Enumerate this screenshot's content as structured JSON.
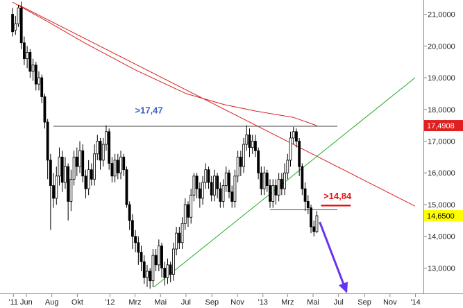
{
  "chart_data": {
    "type": "candlestick",
    "title": "",
    "xlabel": "",
    "ylabel": "",
    "ylim": [
      12.2,
      21.45
    ],
    "grid": false,
    "x_ticks": [
      {
        "label": "'11",
        "date": "2011-05-15"
      },
      {
        "label": "Jun",
        "date": "2011-06-15"
      },
      {
        "label": "Aug",
        "date": "2011-08-15"
      },
      {
        "label": "Okt",
        "date": "2011-10-15"
      },
      {
        "label": "'12",
        "date": "2012-01-01"
      },
      {
        "label": "Mrz",
        "date": "2012-03-01"
      },
      {
        "label": "Mai",
        "date": "2012-05-01"
      },
      {
        "label": "Jul",
        "date": "2012-07-01"
      },
      {
        "label": "Sep",
        "date": "2012-09-01"
      },
      {
        "label": "Nov",
        "date": "2012-11-01"
      },
      {
        "label": "'13",
        "date": "2013-01-01"
      },
      {
        "label": "Mrz",
        "date": "2013-03-01"
      },
      {
        "label": "Mai",
        "date": "2013-05-01"
      },
      {
        "label": "Jul",
        "date": "2013-07-01"
      },
      {
        "label": "Sep",
        "date": "2013-09-01"
      },
      {
        "label": "Nov",
        "date": "2013-11-01"
      },
      {
        "label": "'14",
        "date": "2014-01-01"
      }
    ],
    "y_ticks": [
      {
        "label": "13,0000",
        "value": 13.0
      },
      {
        "label": "14,0000",
        "value": 14.0
      },
      {
        "label": "15,0000",
        "value": 15.0
      },
      {
        "label": "16,0000",
        "value": 16.0
      },
      {
        "label": "17,0000",
        "value": 17.0
      },
      {
        "label": "18,0000",
        "value": 18.0
      },
      {
        "label": "19,0000",
        "value": 19.0
      },
      {
        "label": "20,0000",
        "value": 20.0
      },
      {
        "label": "21,0000",
        "value": 21.0
      }
    ],
    "price_boxes": [
      {
        "label": "17,4908",
        "value": 17.4908,
        "bg": "#e02020",
        "fg": "#ffffff"
      },
      {
        "label": "14,6500",
        "value": 14.65,
        "bg": "#ffff00",
        "fg": "#000000"
      }
    ],
    "candles": [
      [
        "2011-05-13",
        21.0,
        20.45,
        21.2,
        20.3
      ],
      [
        "2011-05-20",
        20.5,
        20.7,
        20.95,
        20.35
      ],
      [
        "2011-05-27",
        20.7,
        21.2,
        21.3,
        20.6
      ],
      [
        "2011-06-03",
        21.2,
        20.1,
        21.4,
        19.9
      ],
      [
        "2011-06-10",
        20.1,
        19.6,
        20.3,
        19.4
      ],
      [
        "2011-06-17",
        19.6,
        19.8,
        20.0,
        19.3
      ],
      [
        "2011-06-24",
        19.8,
        19.2,
        19.9,
        19.0
      ],
      [
        "2011-07-01",
        19.2,
        19.4,
        19.6,
        18.9
      ],
      [
        "2011-07-08",
        19.4,
        18.8,
        19.5,
        18.6
      ],
      [
        "2011-07-15",
        18.8,
        19.0,
        19.2,
        18.6
      ],
      [
        "2011-07-22",
        19.0,
        18.4,
        19.1,
        18.2
      ],
      [
        "2011-07-29",
        18.4,
        17.6,
        18.5,
        17.4
      ],
      [
        "2011-08-05",
        17.6,
        16.4,
        17.7,
        15.8
      ],
      [
        "2011-08-12",
        16.4,
        15.6,
        16.6,
        14.2
      ],
      [
        "2011-08-19",
        15.6,
        15.2,
        16.0,
        14.9
      ],
      [
        "2011-08-26",
        15.2,
        15.9,
        16.2,
        15.0
      ],
      [
        "2011-09-02",
        15.9,
        16.5,
        16.8,
        15.6
      ],
      [
        "2011-09-09",
        16.5,
        15.7,
        16.7,
        15.4
      ],
      [
        "2011-09-16",
        15.7,
        16.2,
        16.5,
        15.5
      ],
      [
        "2011-09-23",
        16.2,
        15.1,
        16.3,
        14.5
      ],
      [
        "2011-09-30",
        15.1,
        15.8,
        16.1,
        14.8
      ],
      [
        "2011-10-07",
        15.8,
        16.5,
        16.7,
        15.6
      ],
      [
        "2011-10-14",
        16.5,
        16.2,
        16.8,
        15.9
      ],
      [
        "2011-10-21",
        16.2,
        16.7,
        17.0,
        16.0
      ],
      [
        "2011-10-28",
        16.7,
        15.9,
        16.9,
        15.7
      ],
      [
        "2011-11-04",
        15.9,
        15.5,
        16.1,
        15.2
      ],
      [
        "2011-11-11",
        15.5,
        16.1,
        16.4,
        15.3
      ],
      [
        "2011-11-18",
        16.1,
        15.8,
        16.3,
        15.6
      ],
      [
        "2011-11-25",
        15.8,
        16.6,
        16.9,
        15.6
      ],
      [
        "2011-12-02",
        16.6,
        17.0,
        17.2,
        16.4
      ],
      [
        "2011-12-09",
        17.0,
        16.4,
        17.1,
        16.1
      ],
      [
        "2011-12-16",
        16.4,
        16.9,
        17.1,
        16.2
      ],
      [
        "2011-12-23",
        16.9,
        17.3,
        17.5,
        16.7
      ],
      [
        "2011-12-30",
        17.3,
        16.3,
        17.4,
        16.1
      ],
      [
        "2012-01-06",
        16.3,
        15.9,
        16.5,
        15.7
      ],
      [
        "2012-01-13",
        15.9,
        16.4,
        16.6,
        15.7
      ],
      [
        "2012-01-20",
        16.4,
        16.0,
        16.6,
        15.8
      ],
      [
        "2012-01-27",
        16.0,
        16.5,
        16.7,
        15.8
      ],
      [
        "2012-02-03",
        16.5,
        16.1,
        16.6,
        15.9
      ],
      [
        "2012-02-10",
        16.1,
        15.0,
        16.2,
        14.9
      ],
      [
        "2012-02-17",
        15.0,
        14.5,
        15.1,
        14.2
      ],
      [
        "2012-02-24",
        14.5,
        14.0,
        14.7,
        13.6
      ],
      [
        "2012-03-02",
        14.0,
        13.8,
        14.2,
        13.5
      ],
      [
        "2012-03-09",
        13.8,
        13.5,
        14.0,
        13.1
      ],
      [
        "2012-03-16",
        13.5,
        13.2,
        13.7,
        12.9
      ],
      [
        "2012-03-23",
        13.2,
        12.7,
        13.4,
        12.5
      ],
      [
        "2012-03-30",
        12.7,
        12.9,
        13.1,
        12.4
      ],
      [
        "2012-04-06",
        12.9,
        12.6,
        13.0,
        12.35
      ],
      [
        "2012-04-13",
        12.6,
        13.4,
        13.6,
        12.4
      ],
      [
        "2012-04-20",
        13.4,
        13.1,
        13.6,
        12.9
      ],
      [
        "2012-04-27",
        13.1,
        13.7,
        13.9,
        12.9
      ],
      [
        "2012-05-04",
        13.7,
        13.0,
        13.8,
        12.7
      ],
      [
        "2012-05-11",
        13.0,
        12.7,
        13.2,
        12.45
      ],
      [
        "2012-05-18",
        12.7,
        13.1,
        13.3,
        12.5
      ],
      [
        "2012-05-25",
        13.1,
        12.8,
        13.2,
        12.55
      ],
      [
        "2012-06-01",
        12.8,
        13.6,
        13.8,
        12.6
      ],
      [
        "2012-06-08",
        13.6,
        14.1,
        14.3,
        13.4
      ],
      [
        "2012-06-15",
        14.1,
        13.8,
        14.3,
        13.6
      ],
      [
        "2012-06-22",
        13.8,
        14.4,
        14.6,
        13.6
      ],
      [
        "2012-06-29",
        14.4,
        15.0,
        15.2,
        14.2
      ],
      [
        "2012-07-06",
        15.0,
        14.6,
        15.1,
        14.3
      ],
      [
        "2012-07-13",
        14.6,
        15.3,
        15.5,
        14.4
      ],
      [
        "2012-07-20",
        15.3,
        15.9,
        16.0,
        15.1
      ],
      [
        "2012-07-27",
        15.9,
        15.5,
        16.0,
        15.2
      ],
      [
        "2012-08-03",
        15.5,
        15.2,
        15.7,
        14.9
      ],
      [
        "2012-08-10",
        15.2,
        15.7,
        15.9,
        15.0
      ],
      [
        "2012-08-17",
        15.7,
        16.1,
        16.3,
        15.5
      ],
      [
        "2012-08-24",
        16.1,
        15.7,
        16.2,
        15.5
      ],
      [
        "2012-08-31",
        15.7,
        15.3,
        15.9,
        15.1
      ],
      [
        "2012-09-07",
        15.3,
        15.9,
        16.1,
        15.1
      ],
      [
        "2012-09-14",
        15.9,
        15.5,
        16.0,
        15.2
      ],
      [
        "2012-09-21",
        15.5,
        15.1,
        15.7,
        14.9
      ],
      [
        "2012-09-28",
        15.1,
        15.6,
        15.8,
        14.9
      ],
      [
        "2012-10-05",
        15.6,
        16.0,
        16.2,
        15.4
      ],
      [
        "2012-10-12",
        16.0,
        15.4,
        16.1,
        15.2
      ],
      [
        "2012-10-19",
        15.4,
        15.1,
        15.6,
        14.9
      ],
      [
        "2012-10-26",
        15.1,
        15.9,
        16.1,
        14.9
      ],
      [
        "2012-11-02",
        15.9,
        16.5,
        16.7,
        15.7
      ],
      [
        "2012-11-09",
        16.5,
        16.2,
        16.7,
        15.9
      ],
      [
        "2012-11-16",
        16.2,
        16.9,
        17.1,
        16.0
      ],
      [
        "2012-11-23",
        16.9,
        17.2,
        17.5,
        16.7
      ],
      [
        "2012-11-30",
        17.2,
        16.8,
        17.4,
        16.5
      ],
      [
        "2012-12-07",
        16.8,
        17.0,
        17.2,
        16.6
      ],
      [
        "2012-12-14",
        17.0,
        16.7,
        17.2,
        16.5
      ],
      [
        "2012-12-21",
        16.7,
        16.0,
        16.8,
        15.8
      ],
      [
        "2012-12-28",
        16.0,
        15.5,
        16.2,
        15.3
      ],
      [
        "2013-01-04",
        15.5,
        16.0,
        16.2,
        15.3
      ],
      [
        "2013-01-11",
        16.0,
        15.6,
        16.1,
        15.4
      ],
      [
        "2013-01-18",
        15.6,
        15.1,
        15.8,
        14.9
      ],
      [
        "2013-01-25",
        15.1,
        15.6,
        15.8,
        14.9
      ],
      [
        "2013-02-01",
        15.6,
        15.3,
        15.8,
        15.0
      ],
      [
        "2013-02-08",
        15.3,
        15.8,
        16.0,
        15.1
      ],
      [
        "2013-02-15",
        15.8,
        15.5,
        16.0,
        15.3
      ],
      [
        "2013-02-22",
        15.5,
        16.0,
        16.3,
        15.3
      ],
      [
        "2013-03-01",
        16.0,
        16.4,
        16.6,
        15.8
      ],
      [
        "2013-03-08",
        16.4,
        17.1,
        17.3,
        16.2
      ],
      [
        "2013-03-15",
        17.1,
        17.3,
        17.45,
        16.9
      ],
      [
        "2013-03-22",
        17.3,
        17.0,
        17.4,
        16.8
      ],
      [
        "2013-03-29",
        17.0,
        16.2,
        17.1,
        15.9
      ],
      [
        "2013-04-05",
        16.2,
        15.5,
        16.3,
        15.3
      ],
      [
        "2013-04-12",
        15.5,
        15.1,
        15.7,
        14.8
      ],
      [
        "2013-04-19",
        15.1,
        14.9,
        15.3,
        14.7
      ],
      [
        "2013-04-26",
        14.9,
        14.3,
        15.0,
        14.1
      ],
      [
        "2013-05-03",
        14.3,
        14.15,
        14.5,
        14.0
      ],
      [
        "2013-05-10",
        14.15,
        14.65,
        14.8,
        14.1
      ]
    ],
    "trend_lines": [
      {
        "name": "moving-average",
        "color": "#d82020",
        "points": [
          [
            "2011-05-13",
            21.38
          ],
          [
            "2011-08-01",
            20.8
          ],
          [
            "2011-11-01",
            20.1
          ],
          [
            "2012-03-01",
            19.25
          ],
          [
            "2012-07-01",
            18.5
          ],
          [
            "2012-10-01",
            18.15
          ],
          [
            "2012-12-15",
            17.95
          ],
          [
            "2013-03-15",
            17.75
          ],
          [
            "2013-05-10",
            17.49
          ]
        ]
      },
      {
        "name": "downtrend-line",
        "color": "#d82020",
        "points": [
          [
            "2011-05-27",
            21.3
          ],
          [
            "2013-12-31",
            14.95
          ]
        ]
      },
      {
        "name": "uptrend-line",
        "color": "#22aa22",
        "points": [
          [
            "2012-04-15",
            12.4
          ],
          [
            "2013-12-31",
            19.0
          ]
        ]
      },
      {
        "name": "resistance-line",
        "color": "#444444",
        "points": [
          [
            "2011-08-19",
            17.47
          ],
          [
            "2013-06-28",
            17.47
          ]
        ]
      },
      {
        "name": "support-line",
        "color": "#444444",
        "points": [
          [
            "2013-01-18",
            14.84
          ],
          [
            "2013-06-28",
            14.84
          ]
        ]
      },
      {
        "name": "level-14-84",
        "color": "#ee1111",
        "points": [
          [
            "2013-05-20",
            14.97
          ],
          [
            "2013-07-30",
            14.97
          ]
        ]
      }
    ],
    "annotations": [
      {
        "text": ">17,47",
        "date": "2012-03-01",
        "value": 17.88,
        "color": "#3a5fcc"
      },
      {
        "text": ">14,84",
        "date": "2013-05-26",
        "value": 15.17,
        "color": "#ee1111"
      }
    ],
    "arrow": {
      "from": [
        "2013-05-17",
        14.45
      ],
      "to": [
        "2013-07-20",
        12.25
      ],
      "color": "#6633ee"
    }
  }
}
